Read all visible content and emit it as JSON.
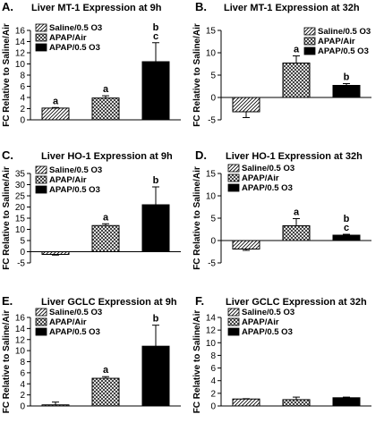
{
  "legend_labels": [
    "Saline/0.5 O3",
    "APAP/Air",
    "APAP/0.5 O3"
  ],
  "ylabel": "FC Relative to Saline/Air",
  "chart_data": [
    {
      "type": "bar",
      "panel_label": "A.",
      "title": "Liver MT-1 Expression at 9h",
      "ylabel": "FC Relative to Saline/Air",
      "ylim": [
        0,
        16
      ],
      "yticks": [
        0,
        2,
        4,
        6,
        8,
        10,
        12,
        14,
        16
      ],
      "legend_position": "top-left",
      "categories": [
        "Saline/0.5 O3",
        "APAP/Air",
        "APAP/0.5 O3"
      ],
      "values": [
        2.1,
        3.9,
        10.4
      ],
      "errors": [
        0.1,
        0.4,
        3.4
      ],
      "annotations": [
        "a",
        "a",
        "b\nc"
      ]
    },
    {
      "type": "bar",
      "panel_label": "B.",
      "title": "Liver MT-1 Expression at 32h",
      "ylabel": "FC Relative to Saline/Air",
      "ylim": [
        -5,
        15
      ],
      "yticks": [
        -5,
        0,
        5,
        10,
        15
      ],
      "legend_position": "top-right",
      "categories": [
        "Saline/0.5 O3",
        "APAP/Air",
        "APAP/0.5 O3"
      ],
      "values": [
        -3.2,
        7.7,
        2.7
      ],
      "errors": [
        1.3,
        1.6,
        0.4
      ],
      "annotations": [
        "",
        "a",
        "b"
      ]
    },
    {
      "type": "bar",
      "panel_label": "C.",
      "title": "Liver HO-1 Expression at 9h",
      "ylabel": "FC Relative to Saline/Air",
      "ylim": [
        -5,
        35
      ],
      "yticks": [
        -5,
        0,
        5,
        10,
        15,
        20,
        25,
        30,
        35
      ],
      "legend_position": "top-left",
      "categories": [
        "Saline/0.5 O3",
        "APAP/Air",
        "APAP/0.5 O3"
      ],
      "values": [
        -1.2,
        11.7,
        21.0
      ],
      "errors": [
        0.3,
        0.8,
        8.0
      ],
      "annotations": [
        "",
        "a",
        "b"
      ]
    },
    {
      "type": "bar",
      "panel_label": "D.",
      "title": "Liver HO-1 Expression at 32h",
      "ylabel": "FC Relative to Saline/Air",
      "ylim": [
        -5,
        15
      ],
      "yticks": [
        -5,
        0,
        5,
        10,
        15
      ],
      "legend_position": "top-left",
      "categories": [
        "Saline/0.5 O3",
        "APAP/Air",
        "APAP/0.5 O3"
      ],
      "values": [
        -1.9,
        3.3,
        1.2
      ],
      "errors": [
        0.3,
        1.6,
        0.2
      ],
      "annotations": [
        "",
        "a",
        "b\nc"
      ]
    },
    {
      "type": "bar",
      "panel_label": "E.",
      "title": "Liver GCLC Expression at 9h",
      "ylabel": "FC Relative to Saline/Air",
      "ylim": [
        0,
        16
      ],
      "yticks": [
        0,
        2,
        4,
        6,
        8,
        10,
        12,
        14,
        16
      ],
      "legend_position": "top-left",
      "categories": [
        "Saline/0.5 O3",
        "APAP/Air",
        "APAP/0.5 O3"
      ],
      "values": [
        0.2,
        5.0,
        10.8
      ],
      "errors": [
        0.5,
        0.3,
        3.8
      ],
      "annotations": [
        "",
        "a",
        "b"
      ]
    },
    {
      "type": "bar",
      "panel_label": "F.",
      "title": "Liver GCLC Expression at 32h",
      "ylabel": "FC Relative to Saline/Air",
      "ylim": [
        0,
        14
      ],
      "yticks": [
        0,
        2,
        4,
        6,
        8,
        10,
        12,
        14
      ],
      "legend_position": "top-left",
      "categories": [
        "Saline/0.5 O3",
        "APAP/Air",
        "APAP/0.5 O3"
      ],
      "values": [
        1.1,
        1.0,
        1.3
      ],
      "errors": [
        0.05,
        0.4,
        0.1
      ],
      "annotations": [
        "",
        "",
        ""
      ]
    }
  ]
}
